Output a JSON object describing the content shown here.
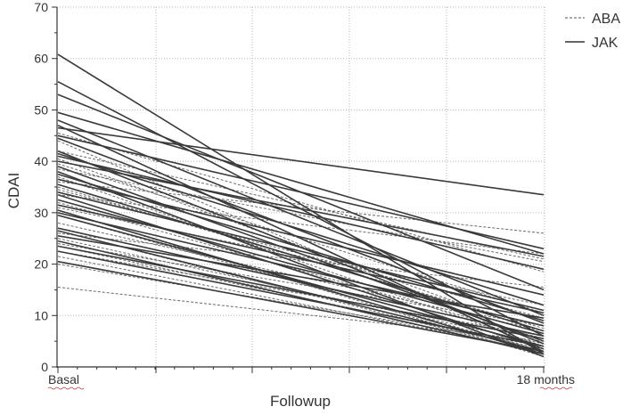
{
  "chart_data": {
    "type": "line",
    "xlabel": "Followup",
    "ylabel": "CDAI",
    "categories": [
      "Basal",
      "18 months"
    ],
    "ylim": [
      0,
      70
    ],
    "yticks": [
      0,
      10,
      20,
      30,
      40,
      50,
      60,
      70
    ],
    "grid": true,
    "legend_position": "top-right",
    "series": [
      {
        "name": "ABA",
        "style": "dashed",
        "lines": [
          [
            15.5,
            5.0
          ],
          [
            20.0,
            4.0
          ],
          [
            21.5,
            3.0
          ],
          [
            22.5,
            6.0
          ],
          [
            23.5,
            3.5
          ],
          [
            24.0,
            8.0
          ],
          [
            25.0,
            4.5
          ],
          [
            26.5,
            2.5
          ],
          [
            28.0,
            7.0
          ],
          [
            29.5,
            3.0
          ],
          [
            31.0,
            12.0
          ],
          [
            32.0,
            5.5
          ],
          [
            33.5,
            22.0
          ],
          [
            34.5,
            9.5
          ],
          [
            36.0,
            26.0
          ],
          [
            37.0,
            4.0
          ],
          [
            38.5,
            20.5
          ],
          [
            39.5,
            10.5
          ],
          [
            40.5,
            6.5
          ],
          [
            42.0,
            21.0
          ],
          [
            44.0,
            3.5
          ],
          [
            45.5,
            18.5
          ],
          [
            26.0,
            15.5
          ],
          [
            30.5,
            2.0
          ],
          [
            35.0,
            7.5
          ]
        ]
      },
      {
        "name": "JAK",
        "style": "solid",
        "lines": [
          [
            60.8,
            2.5
          ],
          [
            55.5,
            6.0
          ],
          [
            53.0,
            15.0
          ],
          [
            49.5,
            22.0
          ],
          [
            48.0,
            10.0
          ],
          [
            47.0,
            3.0
          ],
          [
            46.5,
            33.5
          ],
          [
            45.0,
            23.0
          ],
          [
            44.5,
            8.5
          ],
          [
            42.0,
            4.5
          ],
          [
            41.5,
            12.0
          ],
          [
            41.0,
            19.0
          ],
          [
            40.0,
            21.5
          ],
          [
            39.0,
            5.0
          ],
          [
            38.0,
            2.0
          ],
          [
            37.5,
            9.0
          ],
          [
            36.5,
            14.0
          ],
          [
            35.5,
            7.0
          ],
          [
            34.0,
            11.0
          ],
          [
            33.5,
            3.5
          ],
          [
            32.5,
            6.5
          ],
          [
            31.5,
            10.5
          ],
          [
            30.5,
            2.5
          ],
          [
            30.0,
            8.0
          ],
          [
            29.5,
            4.0
          ],
          [
            27.0,
            6.0
          ],
          [
            26.5,
            3.0
          ],
          [
            25.5,
            9.5
          ],
          [
            24.5,
            2.5
          ],
          [
            23.5,
            5.5
          ],
          [
            22.5,
            4.0
          ],
          [
            20.5,
            3.0
          ]
        ]
      }
    ]
  }
}
